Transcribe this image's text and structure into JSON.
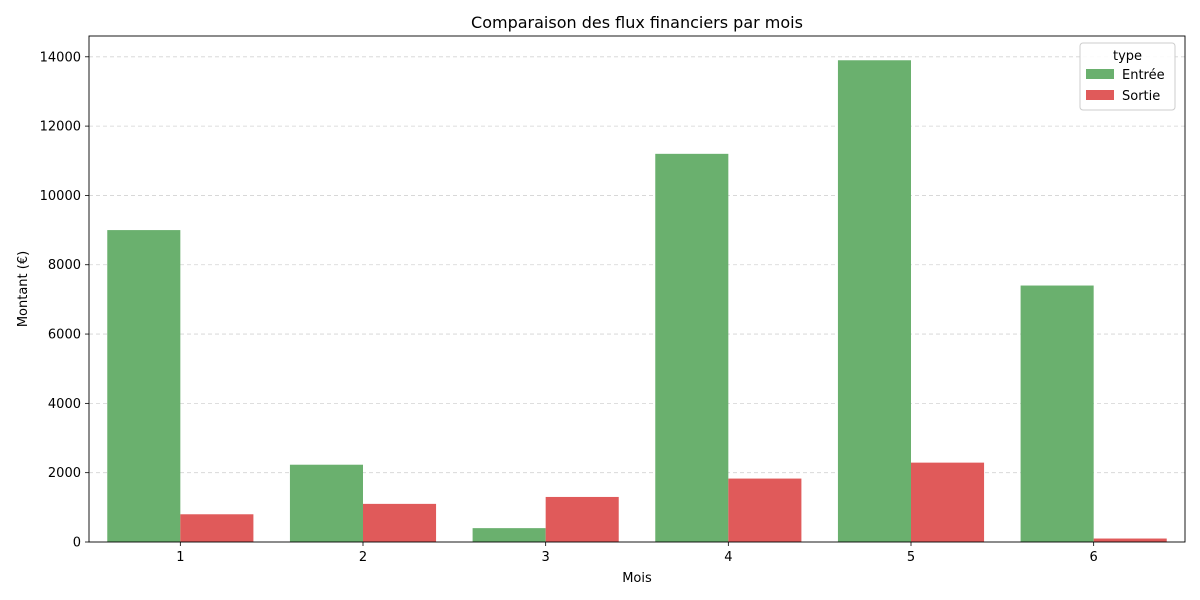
{
  "chart_data": {
    "type": "bar",
    "title": "Comparaison des flux financiers par mois",
    "xlabel": "Mois",
    "ylabel": "Montant (€)",
    "categories": [
      "1",
      "2",
      "3",
      "4",
      "5",
      "6"
    ],
    "series": [
      {
        "name": "Entrée",
        "color": "#6ab06e",
        "values": [
          9000,
          2230,
          400,
          11200,
          13900,
          7400
        ]
      },
      {
        "name": "Sortie",
        "color": "#e05a5a",
        "values": [
          800,
          1100,
          1300,
          1830,
          2290,
          100
        ]
      }
    ],
    "ylim": [
      0,
      14600
    ],
    "yticks": [
      0,
      2000,
      4000,
      6000,
      8000,
      10000,
      12000,
      14000
    ],
    "grid": "horizontal dashed",
    "legend": {
      "title": "type",
      "placement": "top-right"
    }
  }
}
